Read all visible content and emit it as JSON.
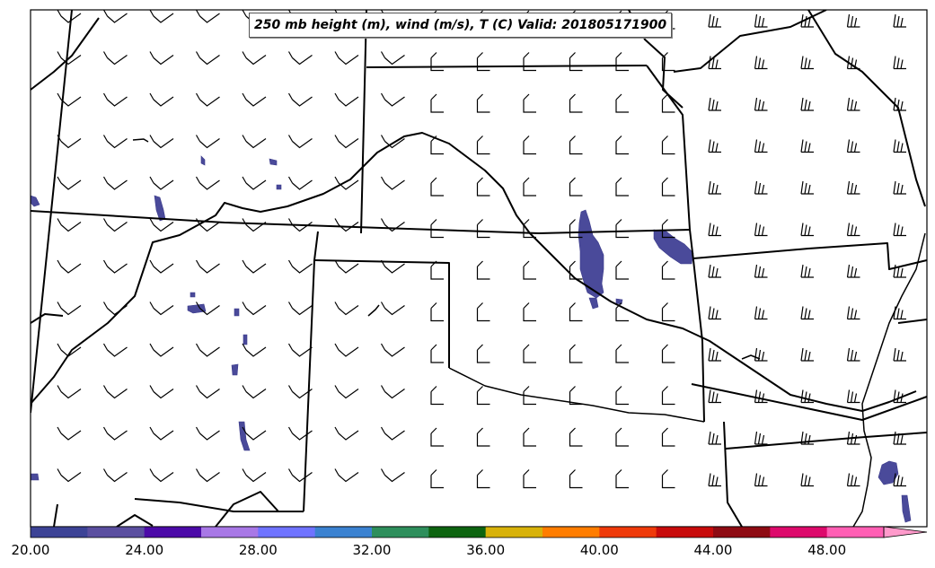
{
  "map": {
    "title": "250 mb height (m), wind (m/s), T (C) Valid: 201805171900"
  },
  "colorbar": {
    "tick_labels": [
      "20.00",
      "24.00",
      "28.00",
      "32.00",
      "36.00",
      "40.00",
      "44.00",
      "48.00"
    ],
    "colors": [
      "#3c4396",
      "#5b4fa0",
      "#4c0aa8",
      "#a878e6",
      "#6f73ff",
      "#3b82d1",
      "#2e8f5c",
      "#0d6410",
      "#d8b20a",
      "#ff7d00",
      "#ef3a0a",
      "#c80b0b",
      "#8e0b13",
      "#dd0a6c",
      "#ff5fb4",
      "#ff9acb"
    ]
  },
  "legend_colors": {
    "state_line": "#000000",
    "temperature_patch": "#4a4a9a"
  }
}
